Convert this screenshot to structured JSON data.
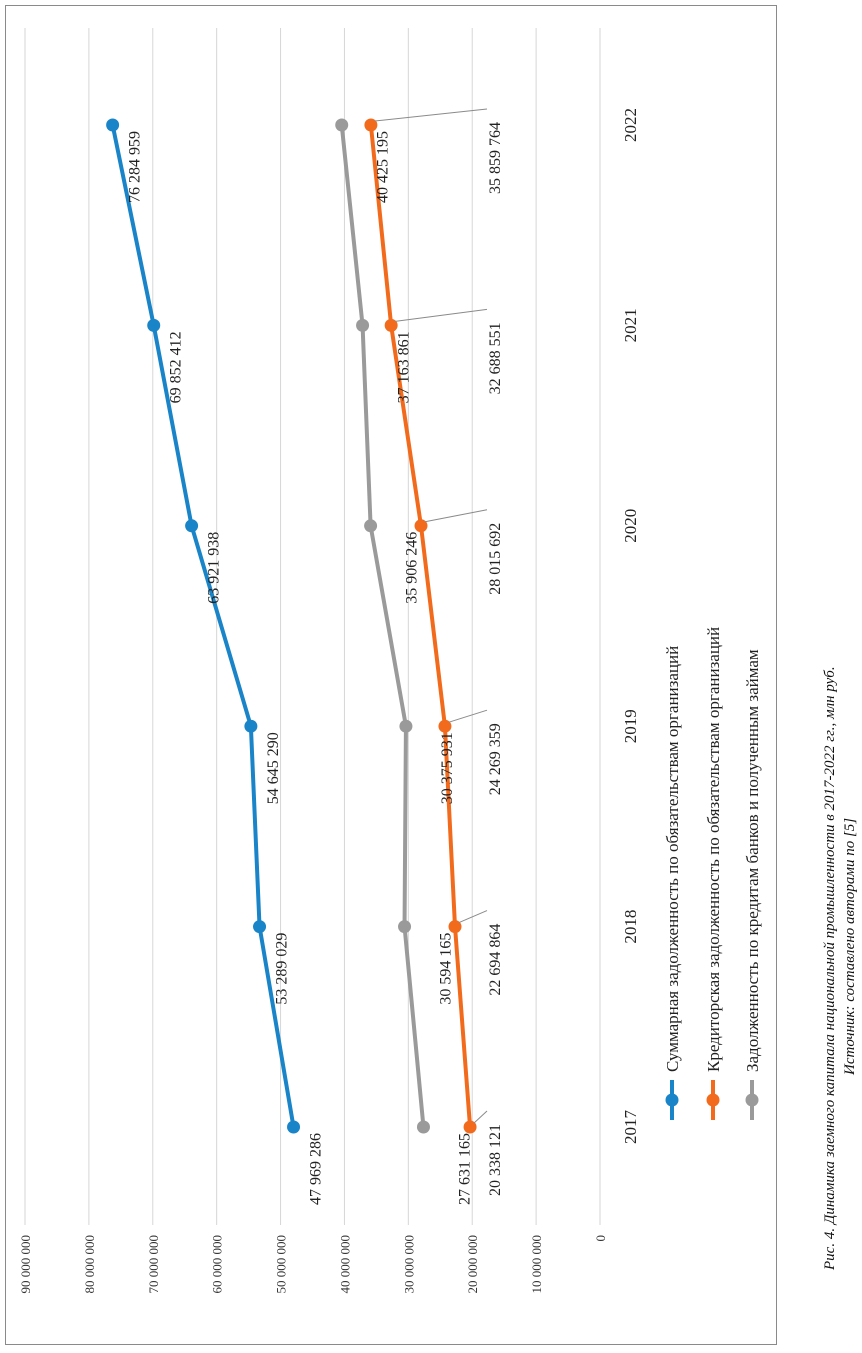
{
  "chart_data": {
    "type": "line",
    "categories": [
      "2017",
      "2018",
      "2019",
      "2020",
      "2021",
      "2022"
    ],
    "series": [
      {
        "name": "Суммарная задолженность по обязательствам организаций",
        "color": "#1a84c8",
        "values": [
          47969286,
          53289029,
          54645290,
          63921938,
          69852412,
          76284959
        ],
        "labels": [
          "47 969 286",
          "53 289 029",
          "54 645 290",
          "63 921 938",
          "69 852 412",
          "76 284 959"
        ]
      },
      {
        "name": "Кредиторская задолженность по обязательствам организаций",
        "color": "#f26b1d",
        "values": [
          20338121,
          22694864,
          24269359,
          28015692,
          32688551,
          35859764
        ],
        "labels": [
          "20 338 121",
          "22 694 864",
          "24 269 359",
          "28 015 692",
          "32 688 551",
          "35 859 764"
        ]
      },
      {
        "name": "Задолженность по кредитам банков и полученным займам",
        "color": "#9a9a9a",
        "values": [
          27631165,
          30594165,
          30375931,
          35906246,
          37163861,
          40425195
        ],
        "labels": [
          "27 631 165",
          "30 594 165",
          "30 375 931",
          "35 906 246",
          "37 163 861",
          "40 425 195"
        ]
      }
    ],
    "ylim": [
      0,
      90000000
    ],
    "ticks": [
      "0",
      "10 000 000",
      "20 000 000",
      "30 000 000",
      "40 000 000",
      "50 000 000",
      "60 000 000",
      "70 000 000",
      "80 000 000",
      "90 000 000"
    ],
    "grid": true,
    "legend_position": "bottom",
    "orientation": "rotated 90° counter-clockwise"
  },
  "caption": {
    "line1": "Рис. 4. Динамика заемного капитала национальной промышленности в 2017-2022 гг., млн руб.",
    "line2": "Источник: составлено авторами по [5]"
  }
}
